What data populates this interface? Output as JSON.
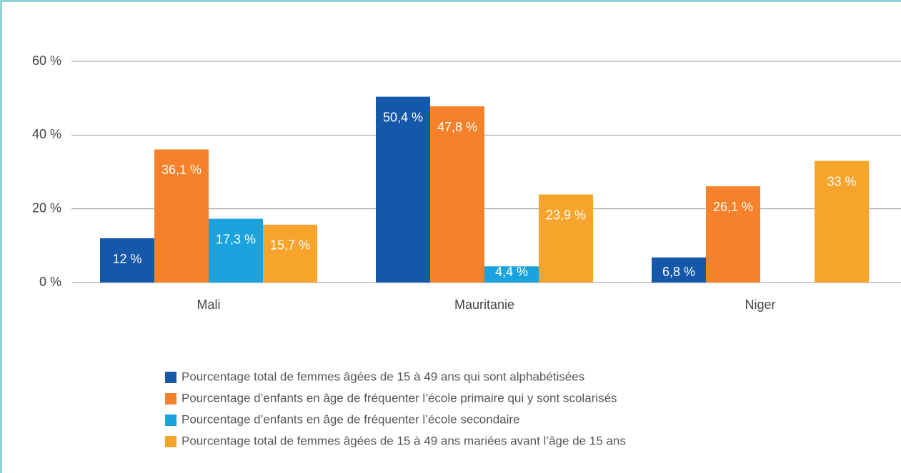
{
  "chart_data": {
    "type": "bar",
    "categories": [
      "Mali",
      "Mauritanie",
      "Niger"
    ],
    "series": [
      {
        "name": "Pourcentage total de femmes âgées de 15 à 49 ans qui sont alphabétisées",
        "color": "#1557a8",
        "values": [
          12,
          50.4,
          6.8
        ],
        "value_labels": [
          "12 %",
          "50,4 %",
          "6,8 %"
        ]
      },
      {
        "name": "Pourcentage d’enfants en âge de fréquenter l’école primaire qui y sont scolarisés",
        "color": "#f5822a",
        "values": [
          36.1,
          47.8,
          26.1
        ],
        "value_labels": [
          "36,1 %",
          "47,8 %",
          "26,1 %"
        ]
      },
      {
        "name": "Pourcentage d’enfants en âge de fréquenter l’école secondaire",
        "color": "#1aa3dc",
        "values": [
          17.3,
          4.4,
          null
        ],
        "value_labels": [
          "17,3 %",
          "4,4 %",
          null
        ]
      },
      {
        "name": "Pourcentage total de femmes âgées de 15 à 49 ans mariées avant l’âge de 15 ans",
        "color": "#f7a42c",
        "values": [
          15.7,
          23.9,
          33
        ],
        "value_labels": [
          "15,7 %",
          "23,9 %",
          "33 %"
        ]
      }
    ],
    "ylim": [
      0,
      60
    ],
    "yticks": [
      {
        "value": 0,
        "label": "0 %"
      },
      {
        "value": 20,
        "label": "20 %"
      },
      {
        "value": 40,
        "label": "40 %"
      },
      {
        "value": 60,
        "label": "60 %"
      }
    ],
    "grid": true
  }
}
